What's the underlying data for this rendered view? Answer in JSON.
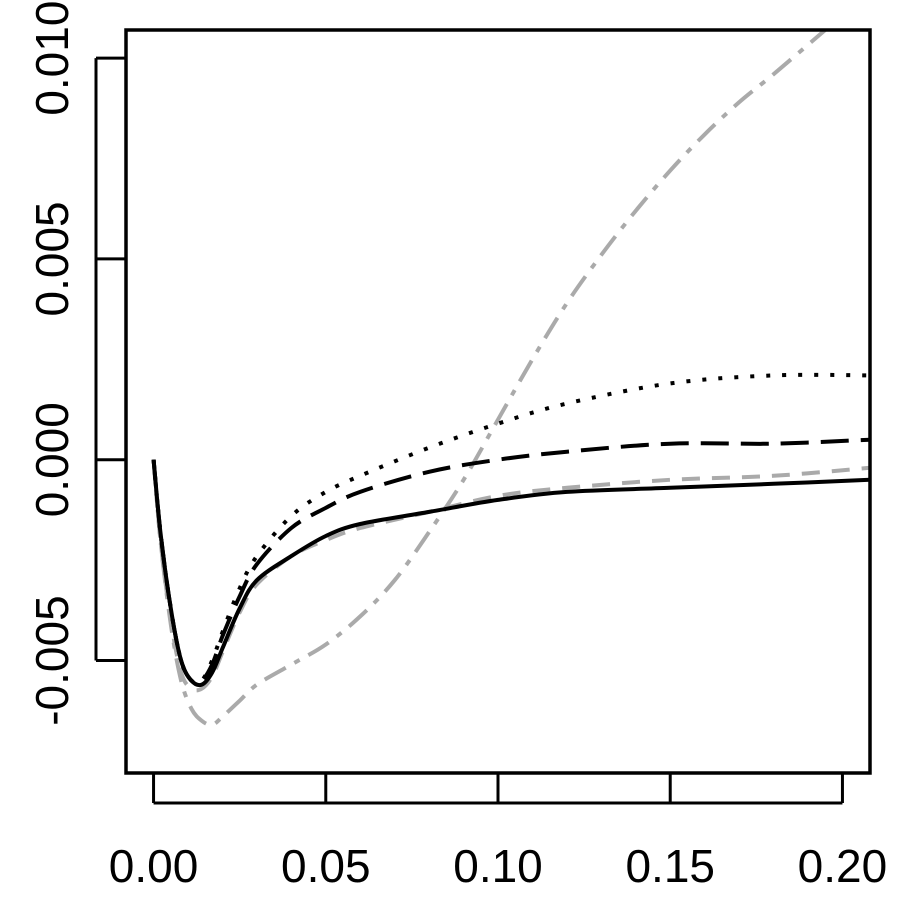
{
  "chart_data": {
    "type": "line",
    "title": "",
    "xlabel": "",
    "ylabel": "",
    "xlim": [
      -0.008,
      0.208
    ],
    "ylim": [
      -0.0078,
      0.0107
    ],
    "x_ticks": [
      0.0,
      0.05,
      0.1,
      0.15,
      0.2
    ],
    "x_tick_labels": [
      "0.00",
      "0.05",
      "0.10",
      "0.15",
      "0.20"
    ],
    "y_ticks": [
      -0.005,
      0.0,
      0.005,
      0.01
    ],
    "y_tick_labels": [
      "-0.005",
      "0.000",
      "0.005",
      "0.010"
    ],
    "grid": false,
    "series": [
      {
        "color": "#000000",
        "dash": "solid",
        "x": [
          0.0,
          0.002,
          0.005,
          0.008,
          0.011,
          0.014,
          0.017,
          0.02,
          0.025,
          0.03,
          0.04,
          0.05,
          0.06,
          0.08,
          0.1,
          0.12,
          0.15,
          0.18,
          0.208
        ],
        "y": [
          0.0,
          -0.0018,
          -0.0037,
          -0.005,
          -0.0055,
          -0.0056,
          -0.0053,
          -0.0047,
          -0.0037,
          -0.003,
          -0.0024,
          -0.0019,
          -0.0016,
          -0.0013,
          -0.001,
          -0.0008,
          -0.0007,
          -0.0006,
          -0.0005
        ]
      },
      {
        "color": "#000000",
        "dash": "dotted",
        "x": [
          0.0,
          0.002,
          0.005,
          0.008,
          0.011,
          0.014,
          0.017,
          0.02,
          0.025,
          0.03,
          0.04,
          0.05,
          0.06,
          0.08,
          0.1,
          0.12,
          0.15,
          0.18,
          0.208
        ],
        "y": [
          0.0,
          -0.0018,
          -0.0037,
          -0.005,
          -0.0055,
          -0.0055,
          -0.005,
          -0.0043,
          -0.0032,
          -0.0024,
          -0.0014,
          -0.0008,
          -0.0004,
          0.0003,
          0.0009,
          0.0014,
          0.0019,
          0.0021,
          0.0021
        ]
      },
      {
        "color": "#000000",
        "dash": "long-dash",
        "x": [
          0.0,
          0.002,
          0.005,
          0.008,
          0.011,
          0.014,
          0.017,
          0.02,
          0.025,
          0.03,
          0.04,
          0.05,
          0.06,
          0.08,
          0.1,
          0.12,
          0.15,
          0.18,
          0.208
        ],
        "y": [
          0.0,
          -0.0018,
          -0.0037,
          -0.005,
          -0.0055,
          -0.0055,
          -0.0051,
          -0.0044,
          -0.0034,
          -0.0026,
          -0.0017,
          -0.0012,
          -0.0008,
          -0.0003,
          0.0,
          0.0002,
          0.0004,
          0.0004,
          0.0005
        ]
      },
      {
        "color": "#aaaaaa",
        "dash": "dashed",
        "x": [
          0.0,
          0.002,
          0.005,
          0.008,
          0.011,
          0.014,
          0.017,
          0.02,
          0.025,
          0.03,
          0.04,
          0.05,
          0.06,
          0.08,
          0.1,
          0.12,
          0.15,
          0.18,
          0.208
        ],
        "y": [
          0.0,
          -0.002,
          -0.004,
          -0.0053,
          -0.0057,
          -0.0057,
          -0.0054,
          -0.0048,
          -0.0038,
          -0.0031,
          -0.0024,
          -0.002,
          -0.0017,
          -0.0013,
          -0.0009,
          -0.0007,
          -0.0005,
          -0.0004,
          -0.0002
        ]
      },
      {
        "color": "#aaaaaa",
        "dash": "dash-dot",
        "x": [
          0.0,
          0.002,
          0.005,
          0.008,
          0.011,
          0.014,
          0.017,
          0.02,
          0.025,
          0.03,
          0.04,
          0.05,
          0.06,
          0.07,
          0.08,
          0.09,
          0.1,
          0.11,
          0.12,
          0.13,
          0.14,
          0.15,
          0.16,
          0.17,
          0.18,
          0.195
        ],
        "y": [
          0.0,
          -0.002,
          -0.0041,
          -0.0055,
          -0.0062,
          -0.0065,
          -0.0066,
          -0.0064,
          -0.006,
          -0.0056,
          -0.0051,
          -0.0046,
          -0.0039,
          -0.003,
          -0.0018,
          -0.0005,
          0.001,
          0.0025,
          0.0039,
          0.0051,
          0.0062,
          0.0072,
          0.0081,
          0.0089,
          0.0096,
          0.0107
        ]
      }
    ]
  }
}
